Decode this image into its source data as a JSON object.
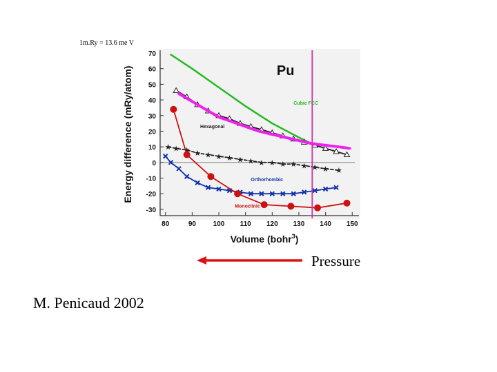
{
  "note": "1m.Ry = 13.6 me V",
  "pressure_label": "Pressure",
  "credit": "M. Penicaud  2002",
  "colors": {
    "cubic_fcc": "#22bb22",
    "hexagonal": "#222222",
    "orthorhombic": "#1133aa",
    "monoclinic": "#cc1111",
    "fit_curve": "#ee22ee",
    "volume_marker": "#cc33aa",
    "arrow": "#dd1111"
  },
  "chart_data": {
    "type": "scatter",
    "annotation": "Pu",
    "xlabel": "Volume (bohr",
    "xlabel_sup": "3",
    "xlabel_end": ")",
    "ylabel": "Energy difference (mRy/atom)",
    "xlim": [
      78,
      152
    ],
    "ylim": [
      -34,
      70
    ],
    "x_ticks": [
      80,
      90,
      100,
      110,
      120,
      130,
      140,
      150
    ],
    "y_ticks": [
      60,
      50,
      40,
      30,
      20,
      10,
      0,
      -10,
      -20,
      -30
    ],
    "y_top_tick": "70",
    "series": [
      {
        "name": "Cubic FCC",
        "color_key": "cubic_fcc",
        "marker": "line",
        "values": [
          [
            82,
            69
          ],
          [
            90,
            60
          ],
          [
            100,
            48
          ],
          [
            110,
            36
          ],
          [
            120,
            25
          ],
          [
            130,
            16
          ],
          [
            136,
            11
          ]
        ]
      },
      {
        "name": "Hexagonal",
        "color_key": "hexagonal",
        "marker": "triangle",
        "values": [
          [
            84,
            46
          ],
          [
            88,
            42
          ],
          [
            92,
            37
          ],
          [
            96,
            33
          ],
          [
            100,
            30
          ],
          [
            104,
            28
          ],
          [
            108,
            25
          ],
          [
            112,
            23
          ],
          [
            116,
            21
          ],
          [
            120,
            19
          ],
          [
            124,
            17
          ],
          [
            128,
            15
          ],
          [
            132,
            13
          ],
          [
            136,
            11
          ],
          [
            140,
            9
          ],
          [
            144,
            7
          ],
          [
            148,
            5
          ]
        ]
      },
      {
        "name": "",
        "color_key": "hexagonal",
        "marker": "star",
        "values": [
          [
            81,
            10
          ],
          [
            84,
            9
          ],
          [
            88,
            8
          ],
          [
            92,
            6
          ],
          [
            96,
            5
          ],
          [
            100,
            4
          ],
          [
            104,
            3
          ],
          [
            108,
            2
          ],
          [
            112,
            1
          ],
          [
            116,
            0
          ],
          [
            120,
            0
          ],
          [
            124,
            -1
          ],
          [
            128,
            -1
          ],
          [
            132,
            -2
          ],
          [
            136,
            -3
          ],
          [
            140,
            -4
          ],
          [
            145,
            -5
          ]
        ]
      },
      {
        "name": "Orthorhombic",
        "color_key": "orthorhombic",
        "marker": "x",
        "values": [
          [
            80,
            4
          ],
          [
            82,
            0
          ],
          [
            85,
            -4
          ],
          [
            88,
            -9
          ],
          [
            92,
            -13
          ],
          [
            96,
            -16
          ],
          [
            100,
            -17
          ],
          [
            104,
            -18
          ],
          [
            108,
            -19
          ],
          [
            112,
            -20
          ],
          [
            116,
            -20
          ],
          [
            120,
            -20
          ],
          [
            124,
            -20
          ],
          [
            128,
            -20
          ],
          [
            132,
            -19
          ],
          [
            136,
            -18
          ],
          [
            140,
            -17
          ],
          [
            144,
            -16
          ]
        ]
      },
      {
        "name": "Monoclinic",
        "color_key": "monoclinic",
        "marker": "dot",
        "values": [
          [
            83,
            34
          ],
          [
            88,
            5
          ],
          [
            97,
            -9
          ],
          [
            107,
            -20
          ],
          [
            117,
            -27
          ],
          [
            127,
            -28
          ],
          [
            137,
            -29
          ],
          [
            148,
            -26
          ]
        ]
      },
      {
        "name": "",
        "color_key": "fit_curve",
        "marker": "line",
        "values": [
          [
            85,
            44
          ],
          [
            90,
            39
          ],
          [
            95,
            34
          ],
          [
            100,
            29
          ],
          [
            105,
            26
          ],
          [
            110,
            23
          ],
          [
            115,
            20
          ],
          [
            120,
            18
          ],
          [
            125,
            16
          ],
          [
            130,
            14
          ],
          [
            135,
            12
          ],
          [
            140,
            11
          ],
          [
            145,
            10
          ],
          [
            149,
            9
          ]
        ]
      }
    ],
    "vertical_marker_x": 135,
    "series_label_positions": {
      "Cubic FCC": [
        128,
        37
      ],
      "Hexagonal": [
        93,
        22
      ],
      "Orthorhombic": [
        112,
        -12
      ],
      "Monoclinic": [
        106,
        -29
      ]
    }
  }
}
